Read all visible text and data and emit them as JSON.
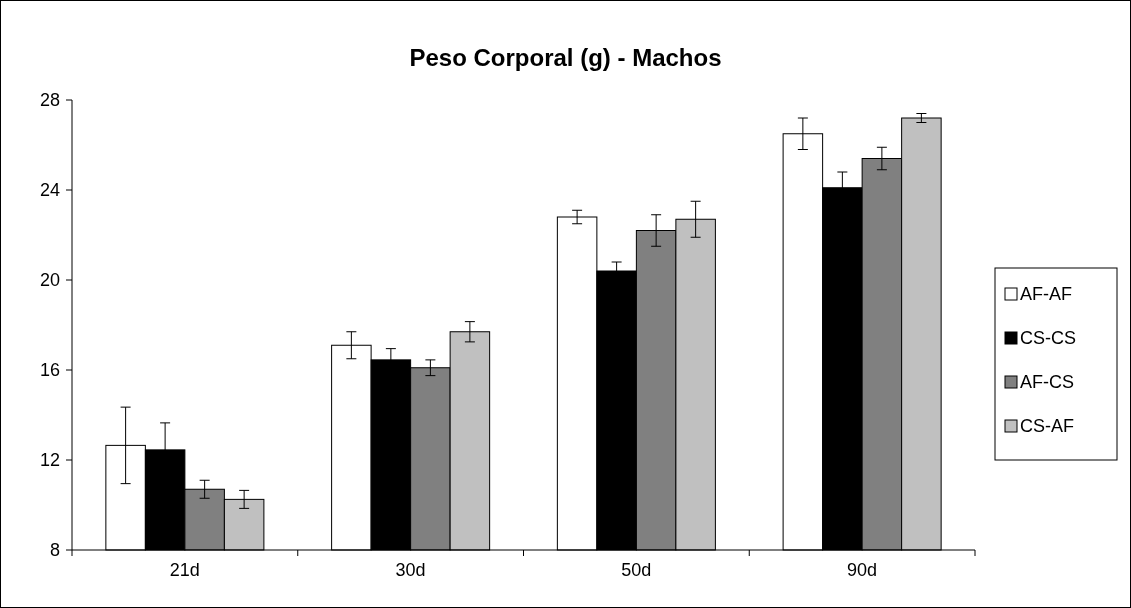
{
  "chart_data": {
    "type": "bar",
    "title": "Peso Corporal (g) - Machos",
    "categories": [
      "21d",
      "30d",
      "50d",
      "90d"
    ],
    "series": [
      {
        "name": "AF-AF",
        "color": "#ffffff",
        "values": [
          12.65,
          17.1,
          22.8,
          26.5
        ],
        "errors": [
          1.7,
          0.6,
          0.3,
          0.7
        ]
      },
      {
        "name": "CS-CS",
        "color": "#000000",
        "values": [
          12.45,
          16.45,
          20.4,
          24.1
        ],
        "errors": [
          1.2,
          0.5,
          0.4,
          0.7
        ]
      },
      {
        "name": "AF-CS",
        "color": "#808080",
        "values": [
          10.7,
          16.1,
          22.2,
          25.4
        ],
        "errors": [
          0.4,
          0.35,
          0.7,
          0.5
        ]
      },
      {
        "name": "CS-AF",
        "color": "#c0c0c0",
        "values": [
          10.25,
          17.7,
          22.7,
          27.2
        ],
        "errors": [
          0.4,
          0.45,
          0.8,
          0.2
        ]
      }
    ],
    "ylim": [
      8,
      28
    ],
    "yticks": [
      8,
      12,
      16,
      20,
      24,
      28
    ],
    "grid": false,
    "legend": "right"
  }
}
